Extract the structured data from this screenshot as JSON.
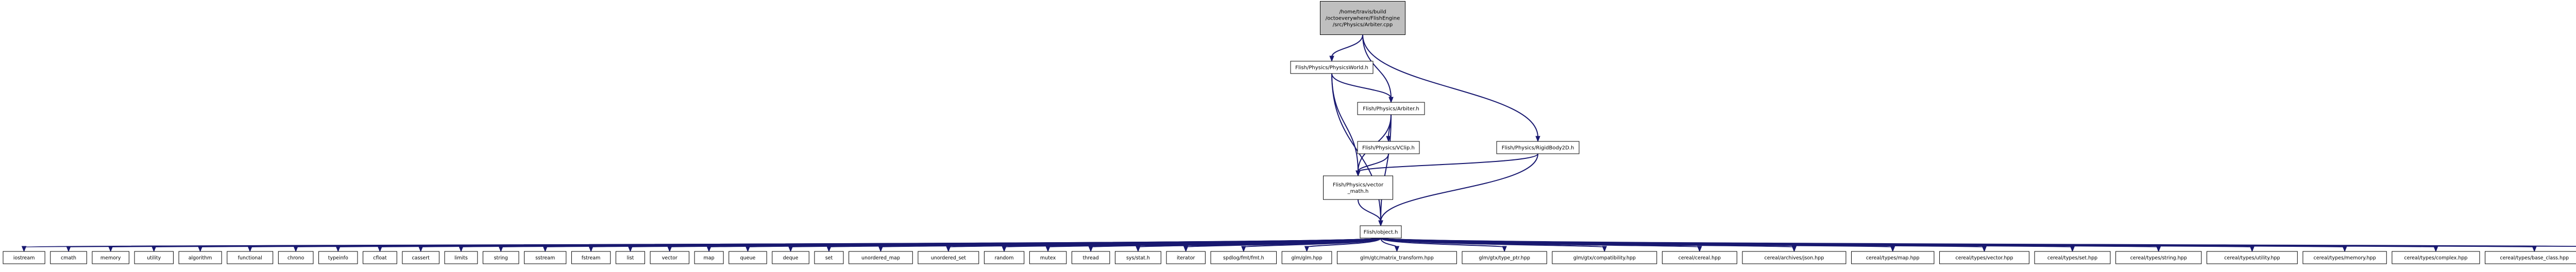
{
  "graph": {
    "colors": {
      "edge": "#191970",
      "node_fill": "#ffffff",
      "root_fill": "#bfbfbf",
      "node_stroke": "#000000",
      "highlight_stroke": "#ff0000"
    },
    "nodes": [
      {
        "id": "root",
        "lines": [
          "/home/travis/build",
          "/octoeverywhere/FlishEngine",
          "/src/Physics/Arbiter.cpp"
        ],
        "style": "root"
      },
      {
        "id": "physicsworld",
        "lines": [
          "Flish/Physics/PhysicsWorld.h"
        ],
        "style": "normal"
      },
      {
        "id": "arbiter",
        "lines": [
          "Flish/Physics/Arbiter.h"
        ],
        "style": "normal"
      },
      {
        "id": "vclip",
        "lines": [
          "Flish/Physics/VClip.h"
        ],
        "style": "normal"
      },
      {
        "id": "rigidbody",
        "lines": [
          "Flish/Physics/RigidBody2D.h"
        ],
        "style": "normal"
      },
      {
        "id": "vectormath",
        "lines": [
          "Flish/Physics/vector",
          "_math.h"
        ],
        "style": "normal"
      },
      {
        "id": "object",
        "lines": [
          "Flish/object.h"
        ],
        "style": "highlight"
      },
      {
        "id": "l0",
        "lines": [
          "iostream"
        ],
        "style": "leaf"
      },
      {
        "id": "l1",
        "lines": [
          "cmath"
        ],
        "style": "leaf"
      },
      {
        "id": "l2",
        "lines": [
          "memory"
        ],
        "style": "leaf"
      },
      {
        "id": "l3",
        "lines": [
          "utility"
        ],
        "style": "leaf"
      },
      {
        "id": "l4",
        "lines": [
          "algorithm"
        ],
        "style": "leaf"
      },
      {
        "id": "l5",
        "lines": [
          "functional"
        ],
        "style": "leaf"
      },
      {
        "id": "l6",
        "lines": [
          "chrono"
        ],
        "style": "leaf"
      },
      {
        "id": "l7",
        "lines": [
          "typeinfo"
        ],
        "style": "leaf"
      },
      {
        "id": "l8",
        "lines": [
          "cfloat"
        ],
        "style": "leaf"
      },
      {
        "id": "l9",
        "lines": [
          "cassert"
        ],
        "style": "leaf"
      },
      {
        "id": "l10",
        "lines": [
          "limits"
        ],
        "style": "leaf"
      },
      {
        "id": "l11",
        "lines": [
          "string"
        ],
        "style": "leaf"
      },
      {
        "id": "l12",
        "lines": [
          "sstream"
        ],
        "style": "leaf"
      },
      {
        "id": "l13",
        "lines": [
          "fstream"
        ],
        "style": "leaf"
      },
      {
        "id": "l14",
        "lines": [
          "list"
        ],
        "style": "leaf"
      },
      {
        "id": "l15",
        "lines": [
          "vector"
        ],
        "style": "leaf"
      },
      {
        "id": "l16",
        "lines": [
          "map"
        ],
        "style": "leaf"
      },
      {
        "id": "l17",
        "lines": [
          "queue"
        ],
        "style": "leaf"
      },
      {
        "id": "l18",
        "lines": [
          "deque"
        ],
        "style": "leaf"
      },
      {
        "id": "l19",
        "lines": [
          "set"
        ],
        "style": "leaf"
      },
      {
        "id": "l20",
        "lines": [
          "unordered_map"
        ],
        "style": "leaf"
      },
      {
        "id": "l21",
        "lines": [
          "unordered_set"
        ],
        "style": "leaf"
      },
      {
        "id": "l22",
        "lines": [
          "random"
        ],
        "style": "leaf"
      },
      {
        "id": "l23",
        "lines": [
          "mutex"
        ],
        "style": "leaf"
      },
      {
        "id": "l24",
        "lines": [
          "thread"
        ],
        "style": "leaf"
      },
      {
        "id": "l25",
        "lines": [
          "sys/stat.h"
        ],
        "style": "leaf"
      },
      {
        "id": "l26",
        "lines": [
          "iterator"
        ],
        "style": "leaf"
      },
      {
        "id": "l27",
        "lines": [
          "spdlog/fmt/fmt.h"
        ],
        "style": "leaf"
      },
      {
        "id": "l28",
        "lines": [
          "glm/glm.hpp"
        ],
        "style": "leaf"
      },
      {
        "id": "l29",
        "lines": [
          "glm/gtc/matrix_transform.hpp"
        ],
        "style": "leaf"
      },
      {
        "id": "l30",
        "lines": [
          "glm/gtx/type_ptr.hpp"
        ],
        "style": "leaf"
      },
      {
        "id": "l31",
        "lines": [
          "glm/gtx/compatibility.hpp"
        ],
        "style": "leaf"
      },
      {
        "id": "l32",
        "lines": [
          "cereal/cereal.hpp"
        ],
        "style": "leaf"
      },
      {
        "id": "l33",
        "lines": [
          "cereal/archives/json.hpp"
        ],
        "style": "leaf"
      },
      {
        "id": "l34",
        "lines": [
          "cereal/types/map.hpp"
        ],
        "style": "leaf"
      },
      {
        "id": "l35",
        "lines": [
          "cereal/types/vector.hpp"
        ],
        "style": "leaf"
      },
      {
        "id": "l36",
        "lines": [
          "cereal/types/set.hpp"
        ],
        "style": "leaf"
      },
      {
        "id": "l37",
        "lines": [
          "cereal/types/string.hpp"
        ],
        "style": "leaf"
      },
      {
        "id": "l38",
        "lines": [
          "cereal/types/utility.hpp"
        ],
        "style": "leaf"
      },
      {
        "id": "l39",
        "lines": [
          "cereal/types/memory.hpp"
        ],
        "style": "leaf"
      },
      {
        "id": "l40",
        "lines": [
          "cereal/types/complex.hpp"
        ],
        "style": "leaf"
      },
      {
        "id": "l41",
        "lines": [
          "cereal/types/base_class.hpp"
        ],
        "style": "leaf"
      },
      {
        "id": "l42",
        "lines": [
          "cereal/types/polymorphic.hpp"
        ],
        "style": "leaf"
      }
    ],
    "edges": [
      [
        "root",
        "physicsworld"
      ],
      [
        "root",
        "arbiter"
      ],
      [
        "root",
        "rigidbody"
      ],
      [
        "physicsworld",
        "arbiter"
      ],
      [
        "physicsworld",
        "vectormath"
      ],
      [
        "physicsworld",
        "object"
      ],
      [
        "arbiter",
        "vclip"
      ],
      [
        "arbiter",
        "vectormath"
      ],
      [
        "arbiter",
        "object"
      ],
      [
        "vclip",
        "vectormath"
      ],
      [
        "rigidbody",
        "vectormath"
      ],
      [
        "rigidbody",
        "object"
      ],
      [
        "vectormath",
        "object"
      ],
      [
        "object",
        "l0"
      ],
      [
        "object",
        "l1"
      ],
      [
        "object",
        "l2"
      ],
      [
        "object",
        "l3"
      ],
      [
        "object",
        "l4"
      ],
      [
        "object",
        "l5"
      ],
      [
        "object",
        "l6"
      ],
      [
        "object",
        "l7"
      ],
      [
        "object",
        "l8"
      ],
      [
        "object",
        "l9"
      ],
      [
        "object",
        "l10"
      ],
      [
        "object",
        "l11"
      ],
      [
        "object",
        "l12"
      ],
      [
        "object",
        "l13"
      ],
      [
        "object",
        "l14"
      ],
      [
        "object",
        "l15"
      ],
      [
        "object",
        "l16"
      ],
      [
        "object",
        "l17"
      ],
      [
        "object",
        "l18"
      ],
      [
        "object",
        "l19"
      ],
      [
        "object",
        "l20"
      ],
      [
        "object",
        "l21"
      ],
      [
        "object",
        "l22"
      ],
      [
        "object",
        "l23"
      ],
      [
        "object",
        "l24"
      ],
      [
        "object",
        "l25"
      ],
      [
        "object",
        "l26"
      ],
      [
        "object",
        "l27"
      ],
      [
        "object",
        "l28"
      ],
      [
        "object",
        "l29"
      ],
      [
        "object",
        "l30"
      ],
      [
        "object",
        "l31"
      ],
      [
        "object",
        "l32"
      ],
      [
        "object",
        "l33"
      ],
      [
        "object",
        "l34"
      ],
      [
        "object",
        "l35"
      ],
      [
        "object",
        "l36"
      ],
      [
        "object",
        "l37"
      ],
      [
        "object",
        "l38"
      ],
      [
        "object",
        "l39"
      ],
      [
        "object",
        "l40"
      ],
      [
        "object",
        "l41"
      ],
      [
        "object",
        "l42"
      ]
    ]
  }
}
